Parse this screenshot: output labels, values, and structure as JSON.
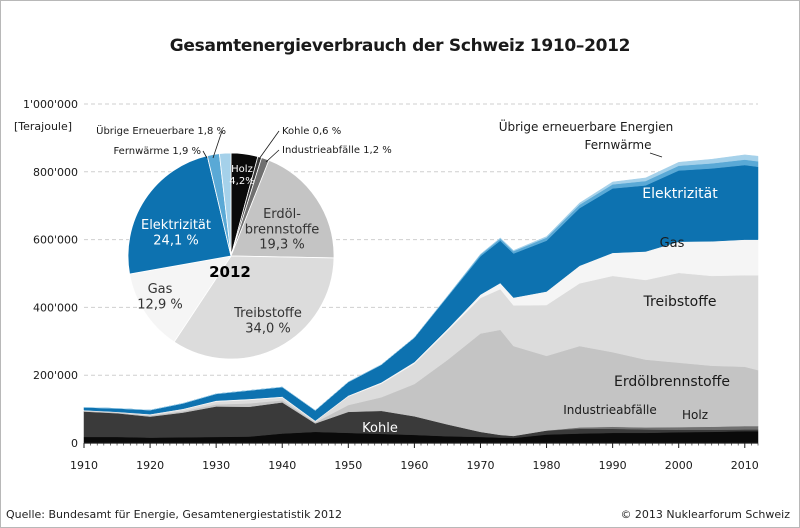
{
  "title": "Gesamtenergieverbrauch der Schweiz 1910–2012",
  "footer": {
    "source": "Quelle: Bundesamt für Energie, Gesamtenergiestatistik 2012",
    "copyright": "© 2013 Nuklearforum Schweiz"
  },
  "colors": {
    "kohle": "#3a3a3a",
    "holz": "#0a0a0a",
    "industrieabfaelle": "#707070",
    "erdoelbrennstoffe": "#c4c4c4",
    "treibstoffe": "#dcdcdc",
    "gas": "#f5f5f5",
    "elektrizitaet": "#0d72b0",
    "fernwaerme": "#5aa9d6",
    "uebrige": "#a5d1ea"
  },
  "chart_data": [
    {
      "type": "area",
      "title": "Gesamtenergieverbrauch der Schweiz 1910–2012",
      "ylabel": "[Terajoule]",
      "ylim": [
        0,
        1000000
      ],
      "xlim": [
        1910,
        2012
      ],
      "yticks": [
        0,
        200000,
        400000,
        600000,
        800000,
        1000000
      ],
      "ytick_labels": [
        "0",
        "200'000",
        "400'000",
        "600'000",
        "800'000",
        "1'000'000"
      ],
      "xticks": [
        1910,
        1920,
        1930,
        1940,
        1950,
        1960,
        1970,
        1980,
        1990,
        2000,
        2010
      ],
      "grid": "horizontal dashed",
      "stack_order": [
        "Holz",
        "Kohle",
        "Industrieabfälle",
        "Erdölbrennstoffe",
        "Treibstoffe",
        "Gas",
        "Elektrizität",
        "Fernwärme",
        "Übrige erneuerbare Energien"
      ],
      "x": [
        1910,
        1915,
        1920,
        1925,
        1930,
        1935,
        1940,
        1945,
        1950,
        1955,
        1960,
        1965,
        1970,
        1973,
        1975,
        1980,
        1985,
        1990,
        1995,
        2000,
        2005,
        2010,
        2012
      ],
      "series": [
        {
          "name": "Holz",
          "values": [
            18000,
            18000,
            16000,
            17000,
            18000,
            19000,
            28000,
            33000,
            30000,
            27000,
            24000,
            20000,
            18000,
            16000,
            15000,
            25000,
            28000,
            30000,
            30000,
            32000,
            33000,
            35000,
            35000
          ]
        },
        {
          "name": "Kohle",
          "values": [
            75000,
            70000,
            62000,
            73000,
            90000,
            88000,
            92000,
            25000,
            62000,
            68000,
            55000,
            35000,
            15000,
            8000,
            6000,
            12000,
            14000,
            12000,
            10000,
            7000,
            6000,
            5000,
            5000
          ]
        },
        {
          "name": "Industrieabfälle",
          "values": [
            0,
            0,
            0,
            0,
            0,
            0,
            0,
            0,
            0,
            0,
            0,
            0,
            0,
            0,
            0,
            0,
            4000,
            6000,
            6000,
            8000,
            9000,
            10000,
            10000
          ]
        },
        {
          "name": "Erdölbrennstoffe",
          "values": [
            2000,
            2000,
            3000,
            4000,
            6000,
            10000,
            6000,
            3000,
            20000,
            40000,
            95000,
            190000,
            290000,
            310000,
            265000,
            220000,
            240000,
            220000,
            200000,
            190000,
            180000,
            175000,
            165000
          ]
        },
        {
          "name": "Treibstoffe",
          "values": [
            1000,
            1000,
            2000,
            5000,
            8000,
            10000,
            8000,
            3000,
            25000,
            40000,
            60000,
            85000,
            105000,
            120000,
            120000,
            150000,
            185000,
            225000,
            235000,
            265000,
            265000,
            270000,
            280000
          ]
        },
        {
          "name": "Gas",
          "values": [
            1000,
            1000,
            2000,
            2000,
            3000,
            3000,
            3000,
            2000,
            3000,
            4000,
            5000,
            6000,
            10000,
            18000,
            23000,
            40000,
            52000,
            68000,
            84000,
            92000,
            102000,
            105000,
            105000
          ]
        },
        {
          "name": "Elektrizität",
          "values": [
            8000,
            10000,
            12000,
            16000,
            20000,
            25000,
            28000,
            30000,
            40000,
            52000,
            72000,
            95000,
            113000,
            125000,
            130000,
            150000,
            170000,
            190000,
            195000,
            210000,
            215000,
            220000,
            215000
          ]
        },
        {
          "name": "Fernwärme",
          "values": [
            0,
            0,
            0,
            0,
            0,
            0,
            0,
            0,
            0,
            0,
            0,
            2000,
            5000,
            6000,
            7000,
            9000,
            10000,
            12000,
            13000,
            14000,
            15000,
            16000,
            16000
          ]
        },
        {
          "name": "Übrige erneuerbare Energien",
          "values": [
            0,
            0,
            0,
            0,
            0,
            0,
            0,
            0,
            0,
            0,
            0,
            0,
            1000,
            2000,
            2000,
            3000,
            5000,
            7000,
            9000,
            10000,
            12000,
            14000,
            15000
          ]
        }
      ],
      "area_labels": [
        {
          "text": "Übrige erneuerbare Energien",
          "series": "Übrige erneuerbare Energien"
        },
        {
          "text": "Fernwärme",
          "series": "Fernwärme"
        },
        {
          "text": "Elektrizität",
          "series": "Elektrizität"
        },
        {
          "text": "Gas",
          "series": "Gas"
        },
        {
          "text": "Treibstoffe",
          "series": "Treibstoffe"
        },
        {
          "text": "Erdölbrennstoffe",
          "series": "Erdölbrennstoffe"
        },
        {
          "text": "Industrieabfälle",
          "series": "Industrieabfälle"
        },
        {
          "text": "Holz",
          "series": "Holz"
        },
        {
          "text": "Kohle",
          "series": "Kohle"
        }
      ]
    },
    {
      "type": "pie",
      "title": "2012",
      "slices": [
        {
          "name": "Holz",
          "label": "Holz",
          "value_label": "4,2%",
          "value": 4.2,
          "color": "#0a0a0a"
        },
        {
          "name": "Kohle",
          "label": "Kohle 0,6 %",
          "value": 0.6,
          "color": "#3a3a3a"
        },
        {
          "name": "Industrieabfälle",
          "label": "Industrieabfälle 1,2 %",
          "value": 1.2,
          "color": "#707070"
        },
        {
          "name": "Erdölbrennstoffe",
          "label": "Erdöl-\nbrennstoffe",
          "value_label": "19,3 %",
          "value": 19.3,
          "color": "#c4c4c4"
        },
        {
          "name": "Treibstoffe",
          "label": "Treibstoffe",
          "value_label": "34,0 %",
          "value": 34.0,
          "color": "#dcdcdc"
        },
        {
          "name": "Gas",
          "label": "Gas",
          "value_label": "12,9 %",
          "value": 12.9,
          "color": "#f5f5f5"
        },
        {
          "name": "Elektrizität",
          "label": "Elektrizität",
          "value_label": "24,1 %",
          "value": 24.1,
          "color": "#0d72b0"
        },
        {
          "name": "Fernwärme",
          "label": "Fernwärme 1,9 %",
          "value": 1.9,
          "color": "#5aa9d6"
        },
        {
          "name": "Übrige Erneuerbare",
          "label": "Übrige Erneuerbare 1,8 %",
          "value": 1.8,
          "color": "#a5d1ea"
        }
      ]
    }
  ]
}
